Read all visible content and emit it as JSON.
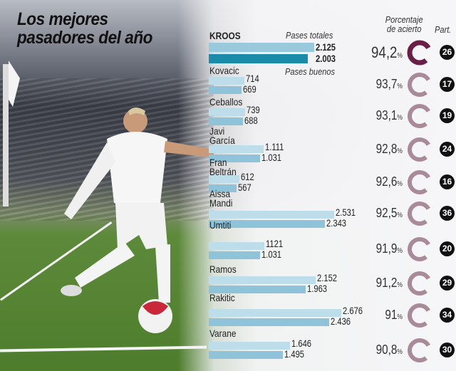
{
  "title_line1": "Los mejores",
  "title_line2": "pasadores del año",
  "headers": {
    "total": "Pases totales",
    "good": "Pases buenos",
    "pct_line1": "Porcentaje",
    "pct_line2": "de acierto",
    "matches": "Part."
  },
  "colors": {
    "total_bar": "#bcdde9",
    "good_bar": "#8ec3d9",
    "kroos_total": "#98c9dc",
    "kroos_good": "#1a8ba9",
    "kroos_ring": "#6b1e45",
    "ring": "#a88a99"
  },
  "chart_data": {
    "type": "bar",
    "orientation": "horizontal",
    "title": "Los mejores pasadores del año",
    "categories": [
      "KROOS",
      "Kovacic",
      "Ceballos",
      "Javi García",
      "Fran Beltrán",
      "Aissa Mandi",
      "Umtiti",
      "Ramos",
      "Rakitic",
      "Varane"
    ],
    "series": [
      {
        "name": "Pases totales",
        "values": [
          "2.125",
          "714",
          "739",
          "1.111",
          "612",
          "2.531",
          "1121",
          "2.152",
          "2.676",
          "1.646"
        ]
      },
      {
        "name": "Pases buenos",
        "values": [
          "2.003",
          "669",
          "688",
          "1.031",
          "567",
          "2.343",
          "1.031",
          "1.963",
          "2.436",
          "1.495"
        ]
      }
    ],
    "accuracy_label": "Porcentaje de acierto",
    "accuracy": [
      "94,2",
      "93,7",
      "93,1",
      "92,8",
      "92,6",
      "92,5",
      "91,9",
      "91,2",
      "91",
      "90,8"
    ],
    "accuracy_unit": "%",
    "matches_label": "Part.",
    "matches": [
      "26",
      "17",
      "19",
      "24",
      "16",
      "36",
      "20",
      "29",
      "34",
      "30"
    ]
  }
}
